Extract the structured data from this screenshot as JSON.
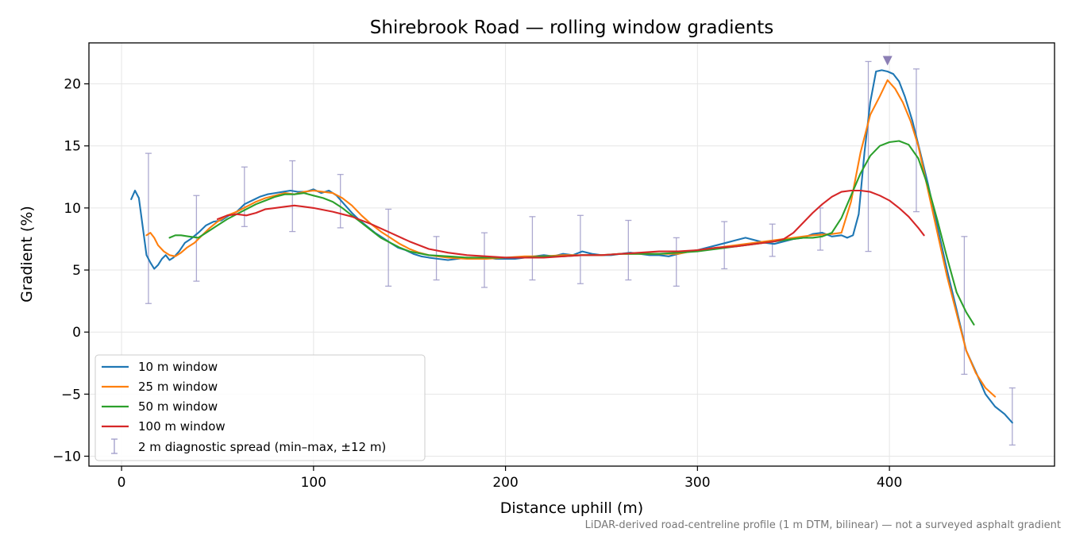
{
  "chart_data": {
    "type": "line",
    "title": "Shirebrook Road — rolling window gradients",
    "xlabel": "Distance uphill (m)",
    "ylabel": "Gradient (%)",
    "xlim": [
      -17,
      486
    ],
    "ylim": [
      -10.8,
      23.3
    ],
    "xticks": [
      0,
      100,
      200,
      300,
      400
    ],
    "yticks": [
      -10,
      -5,
      0,
      5,
      10,
      15,
      20
    ],
    "ytick_labels": [
      "−10",
      "−5",
      "0",
      "5",
      "10",
      "15",
      "20"
    ],
    "grid": true,
    "legend_position": "lower-left",
    "footnote": "LiDAR-derived road-centreline profile (1 m DTM, bilinear) — not a surveyed asphalt gradient",
    "peak_marker": {
      "x": 399,
      "y": 21.8,
      "color": "#8c7fb5"
    },
    "series": [
      {
        "name": "10 m window",
        "color": "#1f77b4",
        "x": [
          5,
          7,
          9,
          11,
          13,
          15,
          17,
          19,
          21,
          23,
          25,
          27,
          30,
          33,
          36,
          40,
          44,
          48,
          52,
          56,
          60,
          64,
          68,
          72,
          76,
          80,
          84,
          88,
          92,
          96,
          100,
          104,
          108,
          112,
          116,
          120,
          124,
          128,
          132,
          136,
          140,
          144,
          148,
          152,
          156,
          160,
          165,
          170,
          175,
          180,
          185,
          190,
          195,
          200,
          205,
          210,
          215,
          220,
          225,
          230,
          235,
          240,
          245,
          250,
          255,
          260,
          265,
          270,
          275,
          280,
          285,
          290,
          295,
          300,
          305,
          310,
          315,
          320,
          325,
          330,
          335,
          340,
          345,
          350,
          355,
          360,
          365,
          370,
          375,
          378,
          381,
          384,
          387,
          390,
          393,
          396,
          399,
          402,
          405,
          408,
          412,
          416,
          420,
          425,
          430,
          435,
          440,
          445,
          450,
          455,
          460,
          464
        ],
        "y": [
          10.7,
          11.4,
          10.8,
          8.5,
          6.2,
          5.6,
          5.1,
          5.4,
          5.9,
          6.2,
          5.8,
          6.0,
          6.5,
          7.2,
          7.5,
          8.0,
          8.6,
          8.9,
          9.0,
          9.4,
          9.7,
          10.3,
          10.6,
          10.9,
          11.1,
          11.2,
          11.3,
          11.4,
          11.3,
          11.3,
          11.5,
          11.2,
          11.4,
          11.0,
          10.3,
          9.6,
          9.0,
          8.5,
          8.0,
          7.6,
          7.2,
          6.8,
          6.6,
          6.3,
          6.1,
          6.0,
          5.9,
          5.8,
          5.9,
          6.0,
          5.9,
          6.0,
          5.9,
          5.9,
          5.9,
          6.0,
          6.1,
          6.2,
          6.1,
          6.3,
          6.2,
          6.5,
          6.3,
          6.2,
          6.2,
          6.3,
          6.4,
          6.3,
          6.2,
          6.2,
          6.1,
          6.3,
          6.5,
          6.6,
          6.8,
          7.0,
          7.2,
          7.4,
          7.6,
          7.4,
          7.2,
          7.1,
          7.3,
          7.5,
          7.6,
          7.9,
          8.0,
          7.7,
          7.8,
          7.6,
          7.8,
          9.5,
          14.5,
          18.5,
          21.0,
          21.1,
          21.0,
          20.8,
          20.2,
          19.0,
          17.0,
          14.5,
          12.0,
          8.5,
          5.0,
          1.8,
          -1.5,
          -3.2,
          -5.0,
          -6.0,
          -6.6,
          -7.3
        ]
      },
      {
        "name": "25 m window",
        "color": "#ff7f0e",
        "x": [
          13,
          15,
          17,
          19,
          22,
          25,
          28,
          31,
          34,
          38,
          42,
          46,
          50,
          55,
          60,
          65,
          70,
          75,
          80,
          85,
          90,
          95,
          100,
          105,
          110,
          115,
          120,
          125,
          130,
          135,
          140,
          145,
          150,
          155,
          160,
          170,
          180,
          190,
          200,
          210,
          220,
          230,
          240,
          250,
          260,
          270,
          280,
          290,
          300,
          310,
          320,
          330,
          340,
          350,
          360,
          370,
          375,
          380,
          385,
          390,
          395,
          399,
          403,
          407,
          411,
          415,
          420,
          425,
          430,
          435,
          440,
          445,
          450,
          455
        ],
        "y": [
          7.8,
          8.0,
          7.6,
          7.0,
          6.5,
          6.2,
          6.1,
          6.4,
          6.8,
          7.2,
          7.8,
          8.4,
          8.9,
          9.4,
          9.7,
          10.1,
          10.5,
          10.8,
          11.0,
          11.2,
          11.1,
          11.3,
          11.4,
          11.3,
          11.2,
          10.8,
          10.2,
          9.4,
          8.7,
          8.1,
          7.6,
          7.1,
          6.7,
          6.4,
          6.2,
          6.0,
          5.9,
          5.9,
          6.0,
          6.1,
          6.1,
          6.2,
          6.2,
          6.2,
          6.3,
          6.3,
          6.3,
          6.3,
          6.6,
          6.8,
          7.0,
          7.2,
          7.4,
          7.6,
          7.8,
          7.9,
          8.0,
          10.5,
          14.5,
          17.5,
          19.0,
          20.3,
          19.6,
          18.5,
          17.0,
          15.0,
          11.5,
          8.0,
          4.5,
          1.5,
          -1.5,
          -3.3,
          -4.5,
          -5.2
        ]
      },
      {
        "name": "50 m window",
        "color": "#2ca02c",
        "x": [
          25,
          28,
          31,
          35,
          40,
          45,
          50,
          55,
          60,
          65,
          70,
          75,
          80,
          85,
          90,
          95,
          100,
          105,
          110,
          115,
          120,
          125,
          130,
          135,
          140,
          145,
          150,
          160,
          170,
          180,
          190,
          200,
          210,
          220,
          230,
          240,
          250,
          260,
          270,
          280,
          290,
          300,
          310,
          320,
          330,
          340,
          345,
          350,
          355,
          360,
          365,
          370,
          375,
          380,
          385,
          390,
          395,
          400,
          405,
          410,
          415,
          420,
          425,
          430,
          435,
          440,
          444
        ],
        "y": [
          7.6,
          7.8,
          7.8,
          7.7,
          7.6,
          8.1,
          8.6,
          9.1,
          9.5,
          9.9,
          10.3,
          10.6,
          10.9,
          11.1,
          11.1,
          11.2,
          11.0,
          10.8,
          10.5,
          10.0,
          9.4,
          8.8,
          8.2,
          7.6,
          7.2,
          6.8,
          6.5,
          6.2,
          6.1,
          6.0,
          6.0,
          6.0,
          6.0,
          6.1,
          6.1,
          6.2,
          6.2,
          6.3,
          6.3,
          6.3,
          6.4,
          6.5,
          6.7,
          6.9,
          7.1,
          7.3,
          7.4,
          7.5,
          7.6,
          7.6,
          7.7,
          8.0,
          9.2,
          11.0,
          12.8,
          14.2,
          15.0,
          15.3,
          15.4,
          15.1,
          14.0,
          11.8,
          9.0,
          6.0,
          3.2,
          1.6,
          0.6
        ]
      },
      {
        "name": "100 m window",
        "color": "#d62728",
        "x": [
          50,
          55,
          60,
          65,
          70,
          75,
          80,
          85,
          90,
          95,
          100,
          110,
          120,
          130,
          140,
          150,
          160,
          170,
          180,
          190,
          200,
          210,
          220,
          230,
          240,
          250,
          260,
          270,
          280,
          290,
          300,
          310,
          320,
          330,
          340,
          345,
          350,
          355,
          360,
          365,
          370,
          375,
          380,
          385,
          390,
          395,
          400,
          405,
          410,
          415,
          418
        ],
        "y": [
          9.1,
          9.4,
          9.5,
          9.4,
          9.6,
          9.9,
          10.0,
          10.1,
          10.2,
          10.1,
          10.0,
          9.7,
          9.3,
          8.7,
          8.0,
          7.3,
          6.7,
          6.4,
          6.2,
          6.1,
          6.0,
          6.0,
          6.0,
          6.1,
          6.2,
          6.2,
          6.3,
          6.4,
          6.5,
          6.5,
          6.6,
          6.8,
          6.9,
          7.1,
          7.3,
          7.5,
          8.0,
          8.8,
          9.6,
          10.3,
          10.9,
          11.3,
          11.4,
          11.4,
          11.3,
          11.0,
          10.6,
          10.0,
          9.3,
          8.4,
          7.8
        ]
      }
    ],
    "errorbars": {
      "name": "2 m diagnostic spread (min–max, ±12 m)",
      "color": "#9e9ac8",
      "points": [
        {
          "x": 14,
          "low": 2.3,
          "high": 14.4
        },
        {
          "x": 39,
          "low": 4.1,
          "high": 11.0
        },
        {
          "x": 64,
          "low": 8.5,
          "high": 13.3
        },
        {
          "x": 89,
          "low": 8.1,
          "high": 13.8
        },
        {
          "x": 114,
          "low": 8.4,
          "high": 12.7
        },
        {
          "x": 139,
          "low": 3.7,
          "high": 9.9
        },
        {
          "x": 164,
          "low": 4.2,
          "high": 7.7
        },
        {
          "x": 189,
          "low": 3.6,
          "high": 8.0
        },
        {
          "x": 214,
          "low": 4.2,
          "high": 9.3
        },
        {
          "x": 239,
          "low": 3.9,
          "high": 9.4
        },
        {
          "x": 264,
          "low": 4.2,
          "high": 9.0
        },
        {
          "x": 289,
          "low": 3.7,
          "high": 7.6
        },
        {
          "x": 314,
          "low": 5.1,
          "high": 8.9
        },
        {
          "x": 339,
          "low": 6.1,
          "high": 8.7
        },
        {
          "x": 364,
          "low": 6.6,
          "high": 10.0
        },
        {
          "x": 389,
          "low": 6.5,
          "high": 21.8
        },
        {
          "x": 414,
          "low": 9.7,
          "high": 21.2
        },
        {
          "x": 439,
          "low": -3.4,
          "high": 7.7
        },
        {
          "x": 464,
          "low": -9.1,
          "high": -4.5
        }
      ]
    }
  }
}
